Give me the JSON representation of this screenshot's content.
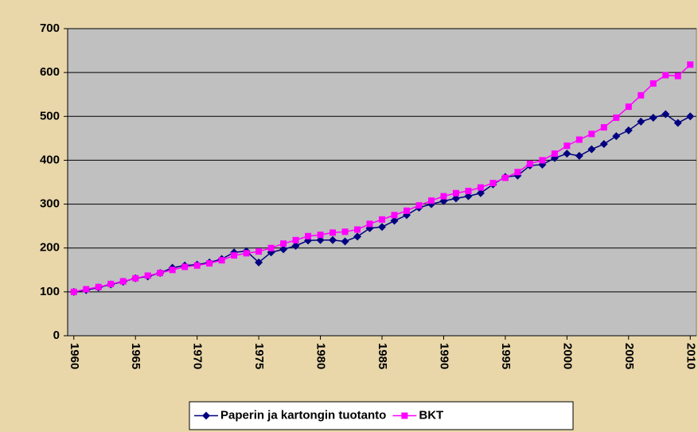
{
  "chart_data": {
    "type": "line",
    "x": [
      1960,
      1961,
      1962,
      1963,
      1964,
      1965,
      1966,
      1967,
      1968,
      1969,
      1970,
      1971,
      1972,
      1973,
      1974,
      1975,
      1976,
      1977,
      1978,
      1979,
      1980,
      1981,
      1982,
      1983,
      1984,
      1985,
      1986,
      1987,
      1988,
      1989,
      1990,
      1991,
      1992,
      1993,
      1994,
      1995,
      1996,
      1997,
      1998,
      1999,
      2000,
      2001,
      2002,
      2003,
      2004,
      2005,
      2006,
      2007,
      2008,
      2009,
      2010
    ],
    "series": [
      {
        "name": "Paperin ja kartongin tuotanto",
        "color": "#000080",
        "marker": "diamond",
        "values": [
          100,
          104,
          110,
          117,
          123,
          131,
          135,
          143,
          155,
          160,
          162,
          167,
          175,
          190,
          193,
          167,
          190,
          197,
          205,
          217,
          218,
          218,
          215,
          226,
          245,
          248,
          262,
          275,
          292,
          300,
          307,
          313,
          318,
          325,
          345,
          362,
          365,
          388,
          390,
          405,
          415,
          410,
          425,
          437,
          455,
          468,
          488,
          497,
          505,
          485,
          500
        ]
      },
      {
        "name": "BKT",
        "color": "#ff00ff",
        "marker": "square",
        "values": [
          100,
          106,
          111,
          118,
          124,
          131,
          137,
          143,
          150,
          157,
          160,
          165,
          172,
          183,
          188,
          192,
          200,
          210,
          218,
          227,
          230,
          235,
          237,
          242,
          255,
          265,
          275,
          285,
          297,
          308,
          318,
          325,
          330,
          338,
          348,
          360,
          373,
          392,
          400,
          415,
          433,
          447,
          460,
          475,
          497,
          522,
          548,
          575,
          594,
          592,
          618
        ]
      }
    ],
    "xlim": [
      1959.5,
      2010.5
    ],
    "xticks": [
      1960,
      1965,
      1970,
      1975,
      1980,
      1985,
      1990,
      1995,
      2000,
      2005,
      2010
    ],
    "ylim": [
      0,
      700
    ],
    "yticks": [
      0,
      100,
      200,
      300,
      400,
      500,
      600,
      700
    ],
    "grid": true,
    "legend": "bottom",
    "plot_background": "#c0c0c0"
  }
}
